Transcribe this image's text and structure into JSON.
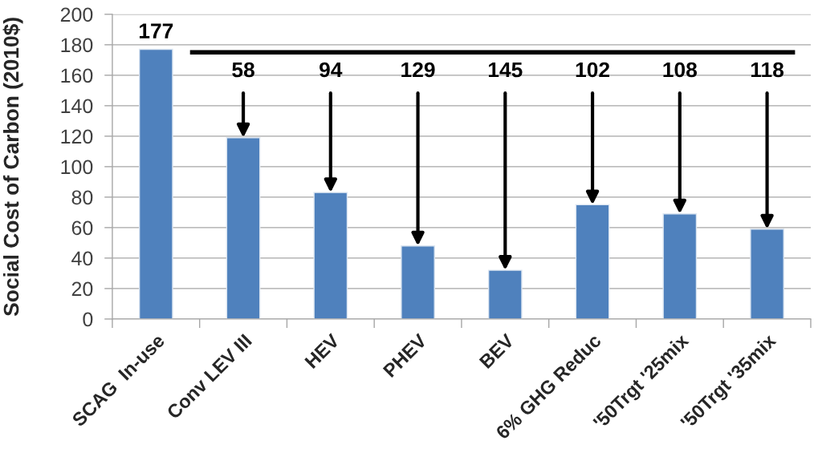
{
  "chart_data": {
    "type": "bar",
    "ylabel": "Social Cost of Carbon (2010$)",
    "categories": [
      "SCAG  In-use",
      "Conv LEV III",
      "HEV",
      "PHEV",
      "BEV",
      "6% GHG Reduc",
      "'50Trgt '25mix",
      "'50Trgt '35mix"
    ],
    "values": [
      177,
      119,
      83,
      48,
      32,
      75,
      69,
      59
    ],
    "color": "#4f81bd",
    "value_labels": [
      "177",
      null,
      null,
      null,
      null,
      null,
      null,
      null
    ],
    "ylim": [
      0,
      200
    ],
    "yticks": [
      0,
      20,
      40,
      60,
      80,
      100,
      120,
      140,
      160,
      180,
      200
    ],
    "grid": "y",
    "ref_lines": [
      {
        "axis": "y",
        "value": 175,
        "color": "#000000"
      }
    ],
    "annotations": [
      {
        "text": "58",
        "x": "Conv LEV III",
        "y": 119
      },
      {
        "text": "94",
        "x": "HEV",
        "y": 83
      },
      {
        "text": "129",
        "x": "PHEV",
        "y": 48
      },
      {
        "text": "145",
        "x": "BEV",
        "y": 32
      },
      {
        "text": "102",
        "x": "6% GHG Reduc",
        "y": 75
      },
      {
        "text": "108",
        "x": "'50Trgt '25mix",
        "y": 69
      },
      {
        "text": "118",
        "x": "'50Trgt '35mix",
        "y": 59
      }
    ]
  }
}
